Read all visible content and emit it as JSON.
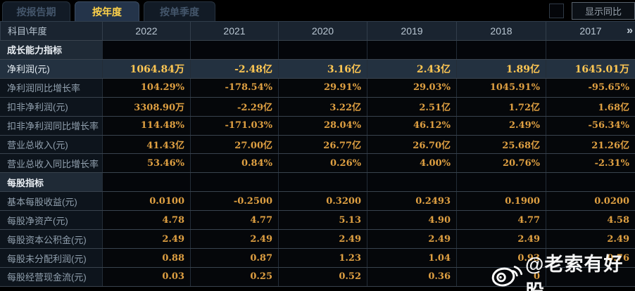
{
  "tabs": [
    {
      "label": "按报告期",
      "active": false
    },
    {
      "label": "按年度",
      "active": true
    },
    {
      "label": "按单季度",
      "active": false
    }
  ],
  "controls": {
    "show_yoy_label": "显示同比",
    "checkbox_checked": false
  },
  "table": {
    "corner_header": "科目\\年度",
    "years": [
      "2022",
      "2021",
      "2020",
      "2019",
      "2018",
      "2017"
    ],
    "more_icon": "»",
    "rows": [
      {
        "type": "section",
        "label": "成长能力指标",
        "values": [
          "",
          "",
          "",
          "",
          "",
          ""
        ]
      },
      {
        "type": "data",
        "highlight": true,
        "label": "净利润(元)",
        "values": [
          "1064.84万",
          "-2.48亿",
          "3.16亿",
          "2.43亿",
          "1.89亿",
          "1645.01万"
        ]
      },
      {
        "type": "data",
        "label": "净利润同比增长率",
        "values": [
          "104.29%",
          "-178.54%",
          "29.91%",
          "29.03%",
          "1045.91%",
          "-95.65%"
        ]
      },
      {
        "type": "data",
        "label": "扣非净利润(元)",
        "values": [
          "3308.90万",
          "-2.29亿",
          "3.22亿",
          "2.51亿",
          "1.72亿",
          "1.68亿"
        ]
      },
      {
        "type": "data",
        "label": "扣非净利润同比增长率",
        "values": [
          "114.48%",
          "-171.03%",
          "28.04%",
          "46.12%",
          "2.49%",
          "-56.34%"
        ]
      },
      {
        "type": "data",
        "label": "营业总收入(元)",
        "values": [
          "41.43亿",
          "27.00亿",
          "26.77亿",
          "26.70亿",
          "25.68亿",
          "21.26亿"
        ]
      },
      {
        "type": "data",
        "label": "营业总收入同比增长率",
        "values": [
          "53.46%",
          "0.84%",
          "0.26%",
          "4.00%",
          "20.76%",
          "-2.31%"
        ]
      },
      {
        "type": "section",
        "label": "每股指标",
        "values": [
          "",
          "",
          "",
          "",
          "",
          ""
        ]
      },
      {
        "type": "data",
        "label": "基本每股收益(元)",
        "values": [
          "0.0100",
          "-0.2500",
          "0.3200",
          "0.2493",
          "0.1900",
          "0.0200"
        ]
      },
      {
        "type": "data",
        "label": "每股净资产(元)",
        "values": [
          "4.78",
          "4.77",
          "5.13",
          "4.90",
          "4.77",
          "4.58"
        ]
      },
      {
        "type": "data",
        "label": "每股资本公积金(元)",
        "values": [
          "2.49",
          "2.49",
          "2.49",
          "2.49",
          "2.49",
          "2.49"
        ]
      },
      {
        "type": "data",
        "label": "每股未分配利润(元)",
        "values": [
          "0.88",
          "0.87",
          "1.23",
          "1.04",
          "0.93",
          "0.76"
        ]
      },
      {
        "type": "data",
        "label": "每股经营现金流(元)",
        "values": [
          "0.03",
          "0.25",
          "0.52",
          "0.36",
          "0",
          ""
        ]
      }
    ]
  },
  "watermark": {
    "icon": "weibo-icon",
    "text": "@老索有好股"
  },
  "colors": {
    "value_text": "#dfa042",
    "highlight_value_text": "#ffc753",
    "tab_active_text": "#ffd24a",
    "header_bg": "#1a2430",
    "highlight_row_bg": "#233140",
    "row_border": "#39434e"
  }
}
